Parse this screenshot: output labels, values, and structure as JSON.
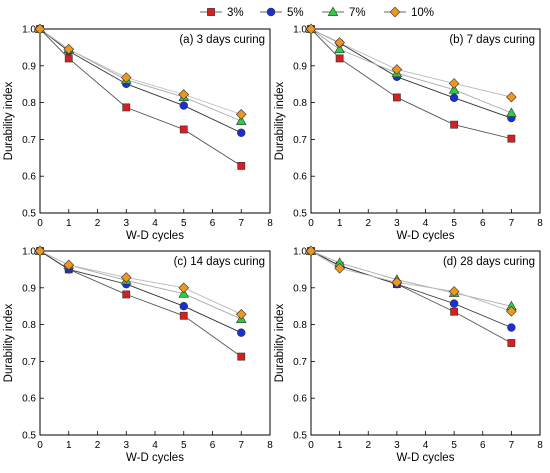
{
  "legend": {
    "position": "top-center",
    "items": [
      {
        "label": "3%",
        "color": "#d42020",
        "marker": "square"
      },
      {
        "label": "5%",
        "color": "#1a2fd6",
        "marker": "circle"
      },
      {
        "label": "7%",
        "color": "#2ecc40",
        "marker": "triangle"
      },
      {
        "label": "10%",
        "color": "#f0961e",
        "marker": "diamond"
      }
    ]
  },
  "chart_data": [
    {
      "type": "line",
      "title": "(a) 3 days curing",
      "xlabel": "W-D cycles",
      "ylabel": "Durability index",
      "xlim": [
        0,
        8
      ],
      "ylim": [
        0.5,
        1.0
      ],
      "xticks": [
        "0",
        "1",
        "2",
        "3",
        "4",
        "5",
        "6",
        "7",
        "8"
      ],
      "yticks": [
        "0.5",
        "0.6",
        "0.7",
        "0.8",
        "0.9",
        "1.0"
      ],
      "x": [
        0,
        1,
        3,
        5,
        7
      ],
      "series": [
        {
          "name": "3%",
          "values": [
            1.0,
            0.92,
            0.787,
            0.727,
            0.628
          ]
        },
        {
          "name": "5%",
          "values": [
            1.0,
            0.94,
            0.851,
            0.792,
            0.718
          ]
        },
        {
          "name": "7%",
          "values": [
            1.0,
            0.945,
            0.862,
            0.815,
            0.75
          ]
        },
        {
          "name": "10%",
          "values": [
            1.0,
            0.945,
            0.868,
            0.822,
            0.768
          ]
        }
      ]
    },
    {
      "type": "line",
      "title": "(b) 7 days curing",
      "xlabel": "W-D cycles",
      "ylabel": "Durability index",
      "xlim": [
        0,
        8
      ],
      "ylim": [
        0.5,
        1.0
      ],
      "xticks": [
        "0",
        "1",
        "2",
        "3",
        "4",
        "5",
        "6",
        "7",
        "8"
      ],
      "yticks": [
        "0.5",
        "0.6",
        "0.7",
        "0.8",
        "0.9",
        "1.0"
      ],
      "x": [
        0,
        1,
        3,
        5,
        7
      ],
      "series": [
        {
          "name": "3%",
          "values": [
            1.0,
            0.92,
            0.814,
            0.74,
            0.702
          ]
        },
        {
          "name": "5%",
          "values": [
            1.0,
            0.962,
            0.87,
            0.813,
            0.758
          ]
        },
        {
          "name": "7%",
          "values": [
            1.0,
            0.945,
            0.88,
            0.835,
            0.772
          ]
        },
        {
          "name": "10%",
          "values": [
            1.0,
            0.963,
            0.89,
            0.852,
            0.815
          ]
        }
      ]
    },
    {
      "type": "line",
      "title": "(c) 14 days curing",
      "xlabel": "W-D cycles",
      "ylabel": "Durability index",
      "xlim": [
        0,
        8
      ],
      "ylim": [
        0.5,
        1.0
      ],
      "xticks": [
        "0",
        "1",
        "2",
        "3",
        "4",
        "5",
        "6",
        "7",
        "8"
      ],
      "yticks": [
        "0.5",
        "0.6",
        "0.7",
        "0.8",
        "0.9",
        "1.0"
      ],
      "x": [
        0,
        1,
        3,
        5,
        7
      ],
      "series": [
        {
          "name": "3%",
          "values": [
            1.0,
            0.95,
            0.882,
            0.824,
            0.713
          ]
        },
        {
          "name": "5%",
          "values": [
            1.0,
            0.95,
            0.91,
            0.85,
            0.778
          ]
        },
        {
          "name": "7%",
          "values": [
            1.0,
            0.962,
            0.92,
            0.884,
            0.815
          ]
        },
        {
          "name": "10%",
          "values": [
            1.0,
            0.962,
            0.928,
            0.9,
            0.828
          ]
        }
      ]
    },
    {
      "type": "line",
      "title": "(d) 28 days curing",
      "xlabel": "W-D cycles",
      "ylabel": "Durability index",
      "xlim": [
        0,
        8
      ],
      "ylim": [
        0.5,
        1.0
      ],
      "xticks": [
        "0",
        "1",
        "2",
        "3",
        "4",
        "5",
        "6",
        "7",
        "8"
      ],
      "yticks": [
        "0.5",
        "0.6",
        "0.7",
        "0.8",
        "0.9",
        "1.0"
      ],
      "x": [
        0,
        1,
        3,
        5,
        7
      ],
      "series": [
        {
          "name": "3%",
          "values": [
            1.0,
            0.96,
            0.91,
            0.835,
            0.75
          ]
        },
        {
          "name": "5%",
          "values": [
            1.0,
            0.96,
            0.91,
            0.857,
            0.792
          ]
        },
        {
          "name": "7%",
          "values": [
            1.0,
            0.968,
            0.922,
            0.886,
            0.85
          ]
        },
        {
          "name": "10%",
          "values": [
            1.0,
            0.953,
            0.915,
            0.89,
            0.836
          ]
        }
      ]
    }
  ]
}
